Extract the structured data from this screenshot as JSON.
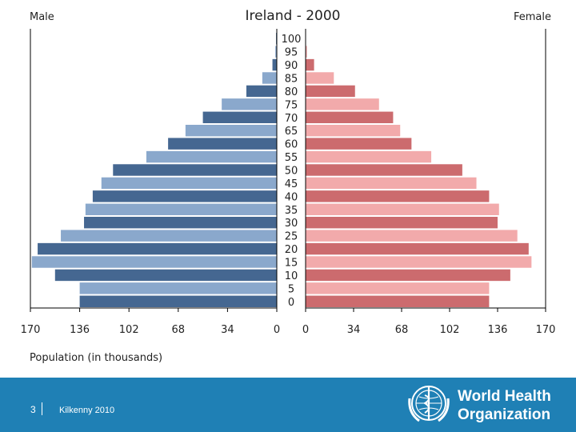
{
  "chart_data": {
    "type": "bar",
    "subtype": "population-pyramid",
    "title": "Ireland - 2000",
    "left_label": "Male",
    "right_label": "Female",
    "xlabel": "Population (in thousands)",
    "x_ticks": [
      0,
      34,
      68,
      102,
      136,
      170
    ],
    "xlim": [
      0,
      170
    ],
    "categories": [
      "100",
      "95",
      "90",
      "85",
      "80",
      "75",
      "70",
      "65",
      "60",
      "55",
      "50",
      "45",
      "40",
      "35",
      "30",
      "25",
      "20",
      "15",
      "10",
      "5",
      "0"
    ],
    "series": [
      {
        "name": "Male",
        "values": [
          0.5,
          1,
          3,
          10,
          21,
          38,
          51,
          63,
          75,
          90,
          113,
          121,
          127,
          132,
          133,
          149,
          165,
          169,
          153,
          136,
          136
        ]
      },
      {
        "name": "Female",
        "values": [
          0,
          1,
          6,
          20,
          35,
          52,
          62,
          67,
          75,
          89,
          111,
          121,
          130,
          137,
          136,
          150,
          158,
          160,
          145,
          130,
          130
        ]
      }
    ],
    "colors": {
      "male_dark": "#456791",
      "male_light": "#8aa8cc",
      "female_dark": "#cc6b6e",
      "female_light": "#f2aaab",
      "axis": "#000000"
    }
  },
  "footer": {
    "page_number": "3",
    "text": "Kilkenny 2010",
    "org_line1": "World Health",
    "org_line2": "Organization",
    "logo_icon": "who-emblem-icon"
  }
}
